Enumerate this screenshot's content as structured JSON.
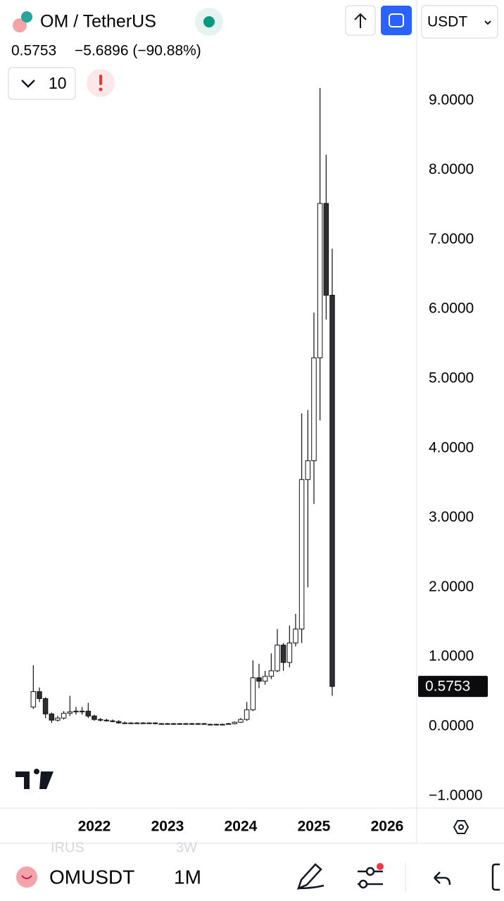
{
  "header": {
    "symbol": "OM / TetherUS",
    "price": "0.5753",
    "change": "−5.6896 (−90.88%)",
    "indicators": "10",
    "currency": "USDT"
  },
  "bottom_bar": {
    "symbol": "OMUSDT",
    "interval": "1M",
    "ghost_left": "IRUS",
    "ghost_right": "3W"
  },
  "chart_data": {
    "type": "candlestick",
    "x": [
      2021.167,
      2021.25,
      2021.333,
      2021.417,
      2021.5,
      2021.583,
      2021.667,
      2021.75,
      2021.833,
      2021.917,
      2022,
      2022.083,
      2022.167,
      2022.25,
      2022.333,
      2022.417,
      2022.5,
      2022.583,
      2022.667,
      2022.75,
      2022.833,
      2022.917,
      2023,
      2023.083,
      2023.167,
      2023.25,
      2023.333,
      2023.417,
      2023.5,
      2023.583,
      2023.667,
      2023.75,
      2023.833,
      2023.917,
      2024,
      2024.083,
      2024.167,
      2024.25,
      2024.333,
      2024.417,
      2024.5,
      2024.583,
      2024.667,
      2024.75,
      2024.833,
      2024.917,
      2025,
      2025.083,
      2025.167,
      2025.25
    ],
    "open": [
      0.28,
      0.5,
      0.4,
      0.18,
      0.09,
      0.12,
      0.19,
      0.21,
      0.22,
      0.22,
      0.15,
      0.1,
      0.09,
      0.08,
      0.07,
      0.05,
      0.05,
      0.05,
      0.05,
      0.05,
      0.05,
      0.04,
      0.04,
      0.04,
      0.04,
      0.04,
      0.04,
      0.04,
      0.04,
      0.03,
      0.03,
      0.03,
      0.03,
      0.04,
      0.06,
      0.1,
      0.24,
      0.7,
      0.65,
      0.72,
      0.8,
      1.17,
      0.92,
      1.2,
      1.4,
      3.55,
      3.82,
      5.3,
      7.52,
      6.2
    ],
    "high": [
      0.88,
      0.56,
      0.42,
      0.2,
      0.15,
      0.22,
      0.44,
      0.28,
      0.28,
      0.34,
      0.17,
      0.12,
      0.11,
      0.1,
      0.09,
      0.07,
      0.06,
      0.06,
      0.06,
      0.06,
      0.06,
      0.05,
      0.05,
      0.05,
      0.05,
      0.05,
      0.05,
      0.05,
      0.05,
      0.04,
      0.04,
      0.04,
      0.05,
      0.07,
      0.12,
      0.35,
      0.95,
      0.9,
      0.8,
      1.05,
      1.4,
      1.2,
      1.45,
      1.62,
      4.5,
      4.55,
      5.95,
      9.18,
      8.22,
      6.87
    ],
    "low": [
      0.25,
      0.35,
      0.12,
      0.05,
      0.07,
      0.1,
      0.15,
      0.17,
      0.17,
      0.12,
      0.08,
      0.07,
      0.07,
      0.06,
      0.04,
      0.04,
      0.04,
      0.04,
      0.04,
      0.04,
      0.03,
      0.03,
      0.03,
      0.03,
      0.03,
      0.03,
      0.03,
      0.03,
      0.03,
      0.02,
      0.02,
      0.02,
      0.03,
      0.03,
      0.05,
      0.08,
      0.22,
      0.55,
      0.6,
      0.68,
      0.78,
      0.8,
      0.85,
      1.15,
      1.2,
      2.0,
      3.2,
      4.4,
      5.85,
      0.44
    ],
    "close": [
      0.5,
      0.4,
      0.18,
      0.09,
      0.12,
      0.19,
      0.21,
      0.22,
      0.22,
      0.15,
      0.1,
      0.09,
      0.08,
      0.07,
      0.05,
      0.05,
      0.05,
      0.05,
      0.05,
      0.05,
      0.04,
      0.04,
      0.04,
      0.04,
      0.04,
      0.04,
      0.04,
      0.04,
      0.03,
      0.03,
      0.03,
      0.03,
      0.04,
      0.06,
      0.1,
      0.24,
      0.7,
      0.65,
      0.72,
      0.8,
      1.17,
      0.92,
      1.2,
      1.4,
      3.55,
      3.82,
      5.3,
      7.52,
      6.2,
      0.5753
    ],
    "up_color": "#ffffff",
    "down_color": "#2f2f33",
    "edge_color": "#111111",
    "xlim": [
      2020.712,
      2026.404
    ],
    "xticks": [
      2022,
      2023,
      2024,
      2025,
      2026
    ],
    "ylim": [
      -1.174,
      10.445
    ],
    "yticks": [
      {
        "value": -1,
        "label": "−1.0000"
      },
      {
        "value": 0,
        "label": "0.0000"
      },
      {
        "value": 1,
        "label": "1.0000"
      },
      {
        "value": 2,
        "label": "2.0000"
      },
      {
        "value": 3,
        "label": "3.0000"
      },
      {
        "value": 4,
        "label": "4.0000"
      },
      {
        "value": 5,
        "label": "5.0000"
      },
      {
        "value": 6,
        "label": "6.0000"
      },
      {
        "value": 7,
        "label": "7.0000"
      },
      {
        "value": 8,
        "label": "8.0000"
      },
      {
        "value": 9,
        "label": "9.0000"
      }
    ]
  }
}
